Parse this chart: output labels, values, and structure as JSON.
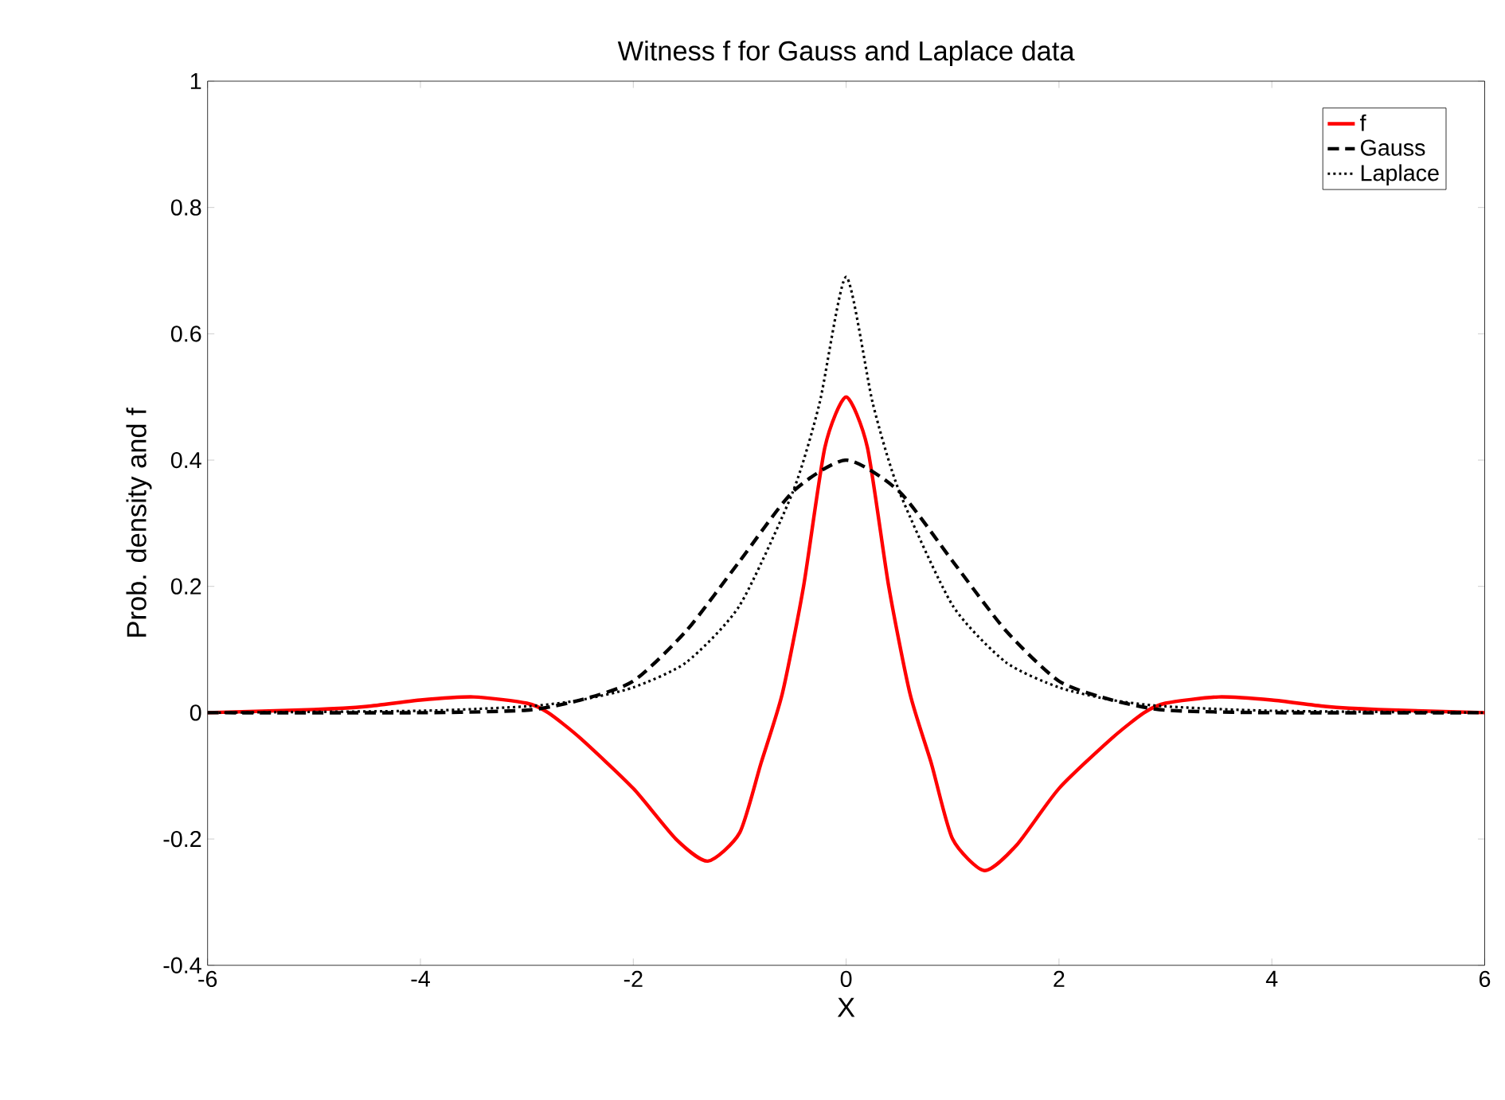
{
  "chart_data": {
    "type": "line",
    "title": "Witness f for Gauss and Laplace data",
    "xlabel": "X",
    "ylabel": "Prob. density and f",
    "xlim": [
      -6,
      6
    ],
    "xticks": [
      -6,
      -4,
      -2,
      0,
      2,
      4,
      6
    ],
    "ylim": [
      -0.4,
      1
    ],
    "yticks": [
      -0.4,
      -0.2,
      0,
      0.2,
      0.4,
      0.6,
      0.8,
      1
    ],
    "grid": false,
    "legend": "top right",
    "marker": "none",
    "series": [
      {
        "name": "f",
        "color": "#ff0000",
        "line_style": "solid",
        "x": [
          -6,
          -5,
          -4.5,
          -4,
          -3.5,
          -3,
          -2.8,
          -2.5,
          -2,
          -1.6,
          -1.3,
          -1,
          -0.8,
          -0.6,
          -0.4,
          -0.2,
          0,
          0.2,
          0.4,
          0.6,
          0.8,
          1,
          1.3,
          1.6,
          2,
          2.5,
          2.8,
          3,
          3.5,
          4,
          4.5,
          5,
          6
        ],
        "values": [
          0,
          0.005,
          0.01,
          0.02,
          0.025,
          0.015,
          0,
          -0.04,
          -0.12,
          -0.2,
          -0.235,
          -0.19,
          -0.08,
          0.03,
          0.2,
          0.42,
          0.5,
          0.42,
          0.2,
          0.03,
          -0.08,
          -0.2,
          -0.25,
          -0.21,
          -0.12,
          -0.04,
          0,
          0.015,
          0.025,
          0.02,
          0.01,
          0.005,
          0
        ]
      },
      {
        "name": "Gauss",
        "color": "#000000",
        "line_style": "dashed",
        "x": [
          -6,
          -4,
          -3,
          -2.5,
          -2,
          -1.5,
          -1,
          -0.5,
          0,
          0.5,
          1,
          1.5,
          2,
          2.5,
          3,
          4,
          6
        ],
        "values": [
          0,
          0,
          0.004,
          0.02,
          0.05,
          0.13,
          0.24,
          0.35,
          0.4,
          0.35,
          0.24,
          0.13,
          0.05,
          0.02,
          0.004,
          0,
          0
        ]
      },
      {
        "name": "Laplace",
        "color": "#000000",
        "line_style": "dotted",
        "x": [
          -6,
          -4,
          -3,
          -2.5,
          -2,
          -1.5,
          -1,
          -0.5,
          -0.25,
          0,
          0.25,
          0.5,
          1,
          1.5,
          2,
          2.5,
          3,
          4,
          6
        ],
        "values": [
          0,
          0.003,
          0.01,
          0.02,
          0.04,
          0.08,
          0.17,
          0.35,
          0.49,
          0.69,
          0.49,
          0.35,
          0.17,
          0.08,
          0.04,
          0.02,
          0.01,
          0.003,
          0
        ]
      }
    ]
  }
}
